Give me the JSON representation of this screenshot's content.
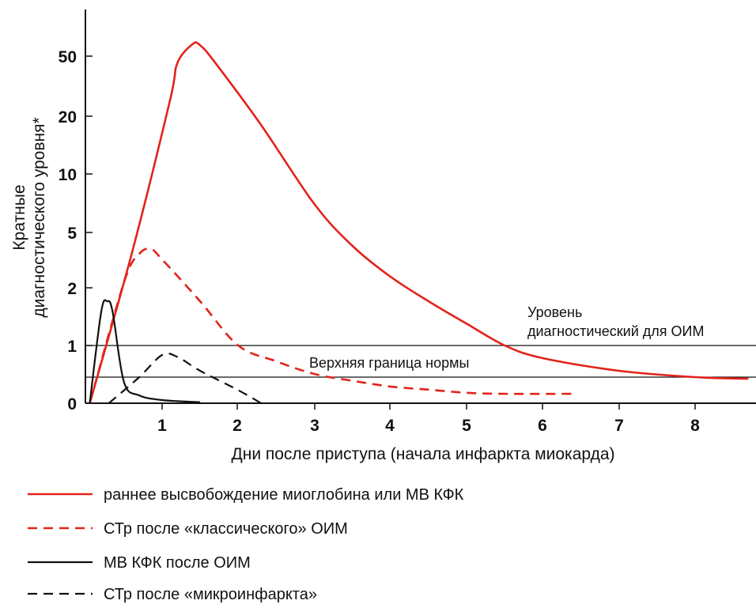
{
  "chart_data": {
    "type": "line",
    "xlabel": "Дни после приступа (начала инфаркта миокарда)",
    "ylabel_lines": [
      "Кратные",
      "диагностического уровня*"
    ],
    "x_ticks": [
      "1",
      "2",
      "3",
      "4",
      "5",
      "6",
      "7",
      "8"
    ],
    "y_ticks": [
      "0",
      "1",
      "2",
      "5",
      "10",
      "20",
      "50"
    ],
    "y_scale": "nonlinear (tick labels 0, 1, 2, 5, 10, 20, 50 at roughly equal spacing)",
    "xlim": [
      0,
      8.8
    ],
    "colors": {
      "red": "#e2231a",
      "black": "#111111"
    },
    "reference_lines": [
      {
        "y": 1,
        "label_lines": [
          "Уровень",
          "диагностический для ОИМ"
        ]
      },
      {
        "y": 0.5,
        "label_lines": [
          "Верхняя граница нормы"
        ]
      }
    ],
    "series": [
      {
        "name": "раннее высвобождение миоглобина или МВ КФК",
        "color": "#e2231a",
        "dash": "solid",
        "points": [
          [
            0.05,
            0
          ],
          [
            0.6,
            3.5
          ],
          [
            1.1,
            25
          ],
          [
            1.2,
            45
          ],
          [
            1.4,
            60
          ],
          [
            1.5,
            59
          ],
          [
            1.7,
            45
          ],
          [
            2.3,
            18
          ],
          [
            3,
            7
          ],
          [
            3.5,
            4
          ],
          [
            4,
            2.4
          ],
          [
            4.5,
            1.7
          ],
          [
            5,
            1.3
          ],
          [
            5.5,
            1.0
          ],
          [
            6,
            0.8
          ],
          [
            7,
            0.6
          ],
          [
            8,
            0.5
          ],
          [
            8.7,
            0.47
          ]
        ]
      },
      {
        "name": "СТр после «классического» ОИМ",
        "color": "#e2231a",
        "dash": "dashed",
        "points": [
          [
            0.05,
            0
          ],
          [
            0.5,
            2.2
          ],
          [
            0.7,
            3.5
          ],
          [
            0.85,
            3.8
          ],
          [
            1,
            3.2
          ],
          [
            1.5,
            1.7
          ],
          [
            2,
            1.0
          ],
          [
            2.5,
            0.75
          ],
          [
            3,
            0.55
          ],
          [
            3.5,
            0.43
          ],
          [
            4,
            0.32
          ],
          [
            4.5,
            0.26
          ],
          [
            5,
            0.2
          ],
          [
            5.5,
            0.18
          ],
          [
            6.4,
            0.18
          ]
        ]
      },
      {
        "name": "МВ КФК после ОИМ",
        "color": "#111111",
        "dash": "solid",
        "points": [
          [
            0.05,
            0
          ],
          [
            0.2,
            1.5
          ],
          [
            0.28,
            1.7
          ],
          [
            0.35,
            1.5
          ],
          [
            0.5,
            0.4
          ],
          [
            0.7,
            0.15
          ],
          [
            1,
            0.06
          ],
          [
            1.5,
            0.02
          ]
        ]
      },
      {
        "name": "СТр после «микроинфаркта»",
        "color": "#111111",
        "dash": "dashed",
        "points": [
          [
            0.3,
            0
          ],
          [
            0.7,
            0.5
          ],
          [
            1,
            0.85
          ],
          [
            1.2,
            0.82
          ],
          [
            1.5,
            0.6
          ],
          [
            2,
            0.25
          ],
          [
            2.3,
            0
          ]
        ]
      }
    ]
  }
}
